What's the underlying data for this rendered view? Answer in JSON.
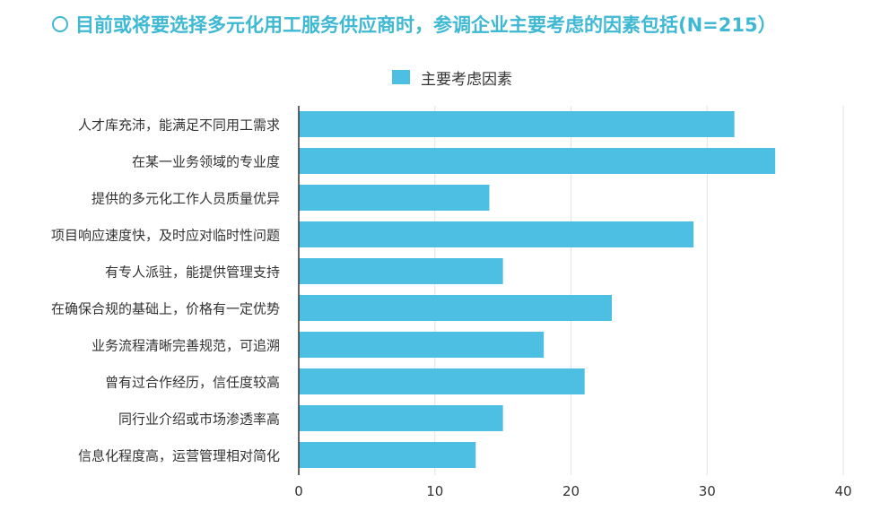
{
  "title": "目前或将要选择多元化用工服务供应商时，参调企业主要考虑的因素包括(N=215）",
  "chart_data": {
    "type": "bar",
    "orientation": "horizontal",
    "title": "目前或将要选择多元化用工服务供应商时，参调企业主要考虑的因素包括(N=215）",
    "xlabel": "",
    "ylabel": "",
    "categories": [
      "人才库充沛，能满足不同用工需求",
      "在某一业务领域的专业度",
      "提供的多元化工作人员质量优异",
      "项目响应速度快，及时应对临时性问题",
      "有专人派驻，能提供管理支持",
      "在确保合规的基础上，价格有一定优势",
      "业务流程清晰完善规范，可追溯",
      "曾有过合作经历，信任度较高",
      "同行业介绍或市场渗透率高",
      "信息化程度高，运营管理相对简化"
    ],
    "series": [
      {
        "name": "主要考虑因素",
        "values": [
          32,
          35,
          14,
          29,
          15,
          23,
          18,
          21,
          15,
          13
        ],
        "color": "#4dbfe3"
      }
    ],
    "xlim": [
      0,
      40
    ],
    "xticks": [
      0,
      10,
      20,
      30,
      40
    ],
    "grid": true,
    "legend_position": "top-center"
  }
}
